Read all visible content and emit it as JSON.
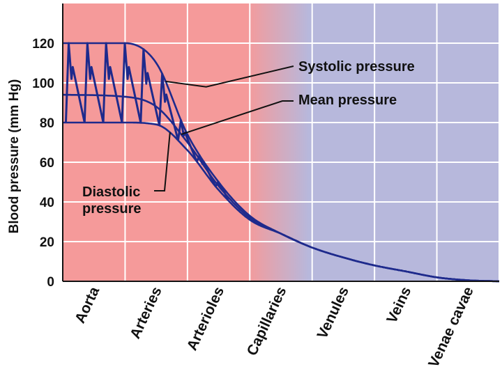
{
  "chart_data": {
    "type": "line",
    "title": "",
    "xlabel": "",
    "ylabel": "Blood pressure (mm Hg)",
    "ylim": [
      0,
      140
    ],
    "yticks": [
      0,
      20,
      40,
      60,
      80,
      100,
      120
    ],
    "grid": true,
    "categories": [
      "Aorta",
      "Arteries",
      "Arterioles",
      "Capillaries",
      "Venules",
      "Veins",
      "Venae cavae"
    ],
    "x_range": [
      0,
      7
    ],
    "series": [
      {
        "name": "Systolic pressure",
        "x": [
          0,
          1,
          1.5,
          2,
          2.5,
          3,
          3.5,
          4,
          4.5,
          5,
          5.5,
          6,
          6.5,
          7
        ],
        "y": [
          120,
          120,
          110,
          74,
          50,
          33,
          24,
          17,
          12,
          8,
          5,
          2,
          0.5,
          0
        ]
      },
      {
        "name": "Mean pressure",
        "x": [
          0,
          1,
          1.5,
          2,
          2.5,
          3,
          3.5,
          4,
          4.5,
          5,
          5.5,
          6,
          6.5,
          7
        ],
        "y": [
          94,
          93,
          88,
          70,
          48,
          32,
          24,
          17,
          12,
          8,
          5,
          2,
          0.5,
          0
        ]
      },
      {
        "name": "Diastolic pressure",
        "x": [
          0,
          1,
          1.5,
          2,
          2.5,
          3,
          3.5,
          4,
          4.5,
          5,
          5.5,
          6,
          6.5,
          7
        ],
        "y": [
          80,
          80,
          79,
          66,
          46,
          31,
          24,
          17,
          12,
          8,
          5,
          2,
          0.5,
          0
        ]
      }
    ],
    "pulse_region_x": [
      0,
      2.6
    ],
    "annotations": [
      {
        "id": "systolic",
        "lines": [
          "Systolic pressure"
        ],
        "target_series": "Systolic pressure"
      },
      {
        "id": "mean",
        "lines": [
          "Mean pressure"
        ],
        "target_series": "Mean pressure"
      },
      {
        "id": "diastolic",
        "lines": [
          "Diastolic",
          "pressure"
        ],
        "target_series": "Diastolic pressure"
      }
    ],
    "colors": {
      "arterial_region": "#f59a9a",
      "venous_region": "#b7b8dc",
      "line": "#1e2a8c",
      "grid": "#ffffff",
      "leader": "#111111"
    }
  }
}
